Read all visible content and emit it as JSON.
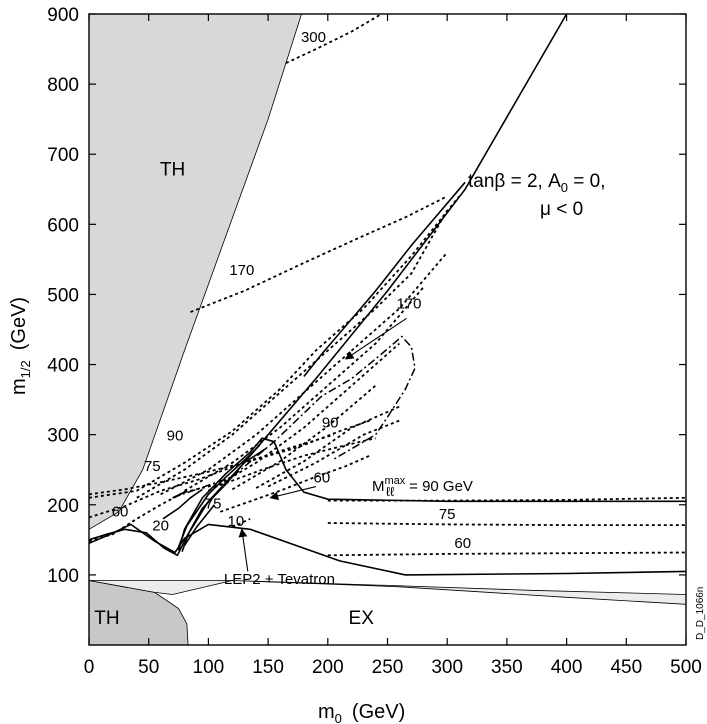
{
  "chart_data": {
    "type": "line",
    "xlabel": "m",
    "xlabel_sub": "0",
    "xlabel_unit": "(GeV)",
    "ylabel": "m",
    "ylabel_sub": "1/2",
    "ylabel_unit": "(GeV)",
    "xlim": [
      0,
      500
    ],
    "ylim": [
      0,
      900
    ],
    "x_ticks": [
      0,
      50,
      100,
      150,
      200,
      250,
      300,
      350,
      400,
      450,
      500
    ],
    "y_ticks": [
      100,
      200,
      300,
      400,
      500,
      600,
      700,
      800,
      900
    ],
    "grid": false,
    "conditions": {
      "line1": "tanβ = 2, A",
      "line1_sub": "0",
      "line1_end": " = 0,",
      "line2": "μ < 0"
    },
    "regions": [
      {
        "label": "TH",
        "color": "#d8d8d8",
        "points": [
          [
            0,
            900
          ],
          [
            178,
            900
          ],
          [
            150,
            750
          ],
          [
            80,
            420
          ],
          [
            45,
            250
          ],
          [
            25,
            190
          ],
          [
            0,
            165
          ]
        ]
      },
      {
        "label": "TH",
        "color": "#c8c8c8",
        "points": [
          [
            0,
            92
          ],
          [
            55,
            75
          ],
          [
            75,
            52
          ],
          [
            82,
            30
          ],
          [
            83,
            0
          ],
          [
            0,
            0
          ]
        ]
      },
      {
        "label": "EX",
        "color": "#ececec",
        "points": [
          [
            0,
            92
          ],
          [
            120,
            92
          ],
          [
            250,
            85
          ],
          [
            370,
            78
          ],
          [
            500,
            72
          ],
          [
            500,
            58
          ],
          [
            400,
            68
          ],
          [
            260,
            83
          ],
          [
            120,
            92
          ],
          [
            70,
            72
          ],
          [
            55,
            75
          ]
        ]
      }
    ],
    "region_labels": [
      {
        "text": "TH",
        "x": 70,
        "y": 670
      },
      {
        "text": "TH",
        "x": 15,
        "y": 30
      },
      {
        "text": "EX",
        "x": 228,
        "y": 30
      }
    ],
    "series": [
      {
        "name": "LEP2 + Tevatron",
        "style": "solid",
        "points": [
          [
            0,
            145
          ],
          [
            18,
            158
          ],
          [
            35,
            172
          ],
          [
            55,
            148
          ],
          [
            72,
            132
          ],
          [
            80,
            152
          ],
          [
            90,
            162
          ],
          [
            100,
            172
          ],
          [
            135,
            165
          ],
          [
            210,
            120
          ],
          [
            265,
            100
          ],
          [
            400,
            102
          ],
          [
            500,
            105
          ]
        ]
      },
      {
        "name": "",
        "style": "solid",
        "points": [
          [
            0,
            150
          ],
          [
            15,
            158
          ],
          [
            30,
            165
          ],
          [
            48,
            160
          ],
          [
            63,
            138
          ],
          [
            74,
            128
          ],
          [
            82,
            155
          ],
          [
            95,
            195
          ],
          [
            115,
            230
          ],
          [
            140,
            280
          ],
          [
            190,
            380
          ],
          [
            250,
            505
          ],
          [
            315,
            650
          ],
          [
            400,
            900
          ]
        ]
      },
      {
        "name": "",
        "style": "solid",
        "points": [
          [
            75,
            135
          ],
          [
            80,
            165
          ],
          [
            95,
            210
          ],
          [
            115,
            245
          ],
          [
            135,
            275
          ],
          [
            145,
            295
          ],
          [
            155,
            290
          ],
          [
            165,
            250
          ],
          [
            180,
            218
          ],
          [
            200,
            208
          ],
          [
            300,
            205
          ],
          [
            500,
            205
          ]
        ]
      },
      {
        "name": "",
        "style": "solid",
        "points": [
          [
            75,
            140
          ],
          [
            82,
            170
          ],
          [
            100,
            215
          ],
          [
            115,
            240
          ],
          [
            133,
            268
          ],
          [
            143,
            285
          ]
        ]
      },
      {
        "name": "",
        "style": "solid",
        "points": [
          [
            180,
            383
          ],
          [
            195,
            415
          ],
          [
            215,
            455
          ],
          [
            240,
            505
          ],
          [
            270,
            570
          ],
          [
            315,
            660
          ]
        ]
      },
      {
        "name": "",
        "style": "solid",
        "points": [
          [
            78,
            133
          ],
          [
            83,
            158
          ],
          [
            100,
            205
          ],
          [
            130,
            260
          ],
          [
            148,
            280
          ]
        ]
      },
      {
        "name": "",
        "style": "solid",
        "points": [
          [
            80,
            142
          ],
          [
            90,
            168
          ],
          [
            105,
            200
          ]
        ]
      },
      {
        "name": "",
        "style": "solid",
        "points": [
          [
            62,
            180
          ],
          [
            75,
            195
          ],
          [
            85,
            210
          ],
          [
            95,
            222
          ]
        ]
      },
      {
        "name": "",
        "style": "solid",
        "points": [
          [
            70,
            210
          ],
          [
            82,
            220
          ]
        ]
      },
      {
        "name": "",
        "style": "dashdot",
        "points": [
          [
            70,
            210
          ],
          [
            95,
            225
          ],
          [
            120,
            240
          ],
          [
            155,
            290
          ],
          [
            195,
            355
          ],
          [
            220,
            380
          ],
          [
            245,
            415
          ],
          [
            262,
            440
          ],
          [
            270,
            425
          ],
          [
            273,
            395
          ],
          [
            265,
            365
          ],
          [
            250,
            325
          ],
          [
            240,
            300
          ],
          [
            225,
            285
          ],
          [
            205,
            265
          ]
        ]
      },
      {
        "name": "",
        "style": "dotted",
        "points": [
          [
            0,
            210
          ],
          [
            40,
            220
          ],
          [
            80,
            260
          ],
          [
            120,
            305
          ],
          [
            160,
            365
          ],
          [
            190,
            420
          ],
          [
            230,
            480
          ],
          [
            270,
            555
          ],
          [
            310,
            640
          ]
        ]
      },
      {
        "name": "",
        "style": "dotted",
        "points": [
          [
            40,
            210
          ],
          [
            80,
            250
          ],
          [
            120,
            300
          ],
          [
            160,
            360
          ],
          [
            200,
            420
          ],
          [
            240,
            480
          ],
          [
            270,
            530
          ],
          [
            300,
            620
          ]
        ]
      },
      {
        "name": "",
        "style": "dotted",
        "points": [
          [
            60,
            215
          ],
          [
            100,
            250
          ],
          [
            140,
            300
          ],
          [
            180,
            360
          ],
          [
            220,
            420
          ],
          [
            260,
            480
          ],
          [
            300,
            560
          ]
        ]
      },
      {
        "name": "",
        "style": "dotted",
        "points": [
          [
            80,
            220
          ],
          [
            120,
            260
          ],
          [
            160,
            310
          ],
          [
            200,
            370
          ],
          [
            240,
            430
          ],
          [
            280,
            510
          ]
        ]
      },
      {
        "name": "",
        "style": "dotted",
        "points": [
          [
            100,
            220
          ],
          [
            140,
            260
          ],
          [
            180,
            310
          ],
          [
            220,
            370
          ],
          [
            260,
            430
          ]
        ]
      },
      {
        "name": "",
        "style": "dotted",
        "points": [
          [
            120,
            222
          ],
          [
            160,
            262
          ],
          [
            200,
            312
          ],
          [
            240,
            370
          ]
        ]
      },
      {
        "name": "",
        "style": "dotted",
        "points": [
          [
            140,
            224
          ],
          [
            180,
            262
          ],
          [
            220,
            310
          ],
          [
            260,
            340
          ]
        ]
      },
      {
        "name": "",
        "style": "dotted",
        "points": [
          [
            150,
            226
          ],
          [
            190,
            260
          ],
          [
            230,
            300
          ],
          [
            260,
            320
          ]
        ]
      },
      {
        "name": "",
        "style": "dotted",
        "points": [
          [
            0,
            215
          ],
          [
            30,
            222
          ],
          [
            60,
            232
          ],
          [
            95,
            245
          ],
          [
            130,
            260
          ],
          [
            175,
            282
          ],
          [
            210,
            305
          ],
          [
            235,
            320
          ]
        ]
      },
      {
        "name": "",
        "style": "dotted",
        "points": [
          [
            105,
            225
          ],
          [
            145,
            250
          ],
          [
            180,
            270
          ],
          [
            215,
            285
          ],
          [
            240,
            295
          ]
        ]
      },
      {
        "name": "",
        "style": "dotted",
        "points": [
          [
            0,
            182
          ],
          [
            30,
            198
          ],
          [
            60,
            220
          ],
          [
            90,
            235
          ],
          [
            130,
            260
          ],
          [
            170,
            282
          ],
          [
            205,
            300
          ]
        ]
      },
      {
        "name": "",
        "style": "dotted",
        "points": [
          [
            0,
            148
          ],
          [
            20,
            158
          ],
          [
            40,
            180
          ],
          [
            60,
            200
          ],
          [
            80,
            218
          ],
          [
            110,
            230
          ]
        ]
      },
      {
        "name": "",
        "style": "dotted",
        "points": [
          [
            110,
            190
          ],
          [
            135,
            205
          ],
          [
            160,
            220
          ],
          [
            190,
            240
          ],
          [
            215,
            255
          ],
          [
            235,
            270
          ]
        ]
      },
      {
        "name": "",
        "style": "dotted",
        "points": [
          [
            120,
            168
          ],
          [
            135,
            180
          ]
        ]
      },
      {
        "name": "",
        "style": "dotted",
        "points": [
          [
            85,
            475
          ],
          [
            130,
            505
          ],
          [
            180,
            545
          ],
          [
            225,
            580
          ],
          [
            265,
            610
          ],
          [
            300,
            640
          ]
        ]
      },
      {
        "name": "",
        "style": "dotted",
        "points": [
          [
            165,
            830
          ],
          [
            190,
            850
          ],
          [
            220,
            875
          ],
          [
            245,
            900
          ]
        ]
      },
      {
        "name": "",
        "style": "dotted",
        "points": [
          [
            200,
            206
          ],
          [
            300,
            206
          ],
          [
            400,
            207
          ],
          [
            500,
            210
          ]
        ]
      },
      {
        "name": "",
        "style": "dotted",
        "points": [
          [
            200,
            174
          ],
          [
            300,
            172
          ],
          [
            400,
            171
          ],
          [
            500,
            171
          ]
        ]
      },
      {
        "name": "",
        "style": "dotted",
        "points": [
          [
            200,
            128
          ],
          [
            300,
            130
          ],
          [
            400,
            131
          ],
          [
            500,
            132
          ]
        ]
      }
    ],
    "annotations": [
      {
        "text": "300",
        "x": 188,
        "y": 860
      },
      {
        "text": "170",
        "x": 128,
        "y": 528
      },
      {
        "text": "170",
        "x": 268,
        "y": 480
      },
      {
        "text": "90",
        "x": 72,
        "y": 292
      },
      {
        "text": "90",
        "x": 202,
        "y": 310
      },
      {
        "text": "75",
        "x": 53,
        "y": 248
      },
      {
        "text": "60",
        "x": 26,
        "y": 183
      },
      {
        "text": "60",
        "x": 195,
        "y": 232
      },
      {
        "text": "20",
        "x": 60,
        "y": 163
      },
      {
        "text": "75",
        "x": 104,
        "y": 195
      },
      {
        "text": "10",
        "x": 123,
        "y": 170
      },
      {
        "text": "75",
        "x": 300,
        "y": 180
      },
      {
        "text": "60",
        "x": 313,
        "y": 138
      }
    ],
    "arrows": [
      {
        "from": [
          266,
          466
        ],
        "to": [
          215,
          408
        ]
      },
      {
        "from": [
          190,
          226
        ],
        "to": [
          152,
          210
        ]
      },
      {
        "from": [
          133,
          105
        ],
        "to": [
          128,
          165
        ]
      }
    ],
    "mll_label": {
      "prefix": "M",
      "sup": "max",
      "sub": "ℓℓ",
      "suffix": " = 90 GeV",
      "x": 237,
      "y": 220
    },
    "lep_label": {
      "text": "LEP2 + Tevatron",
      "x": 113,
      "y": 87
    },
    "ident": "D_D_1066n"
  }
}
